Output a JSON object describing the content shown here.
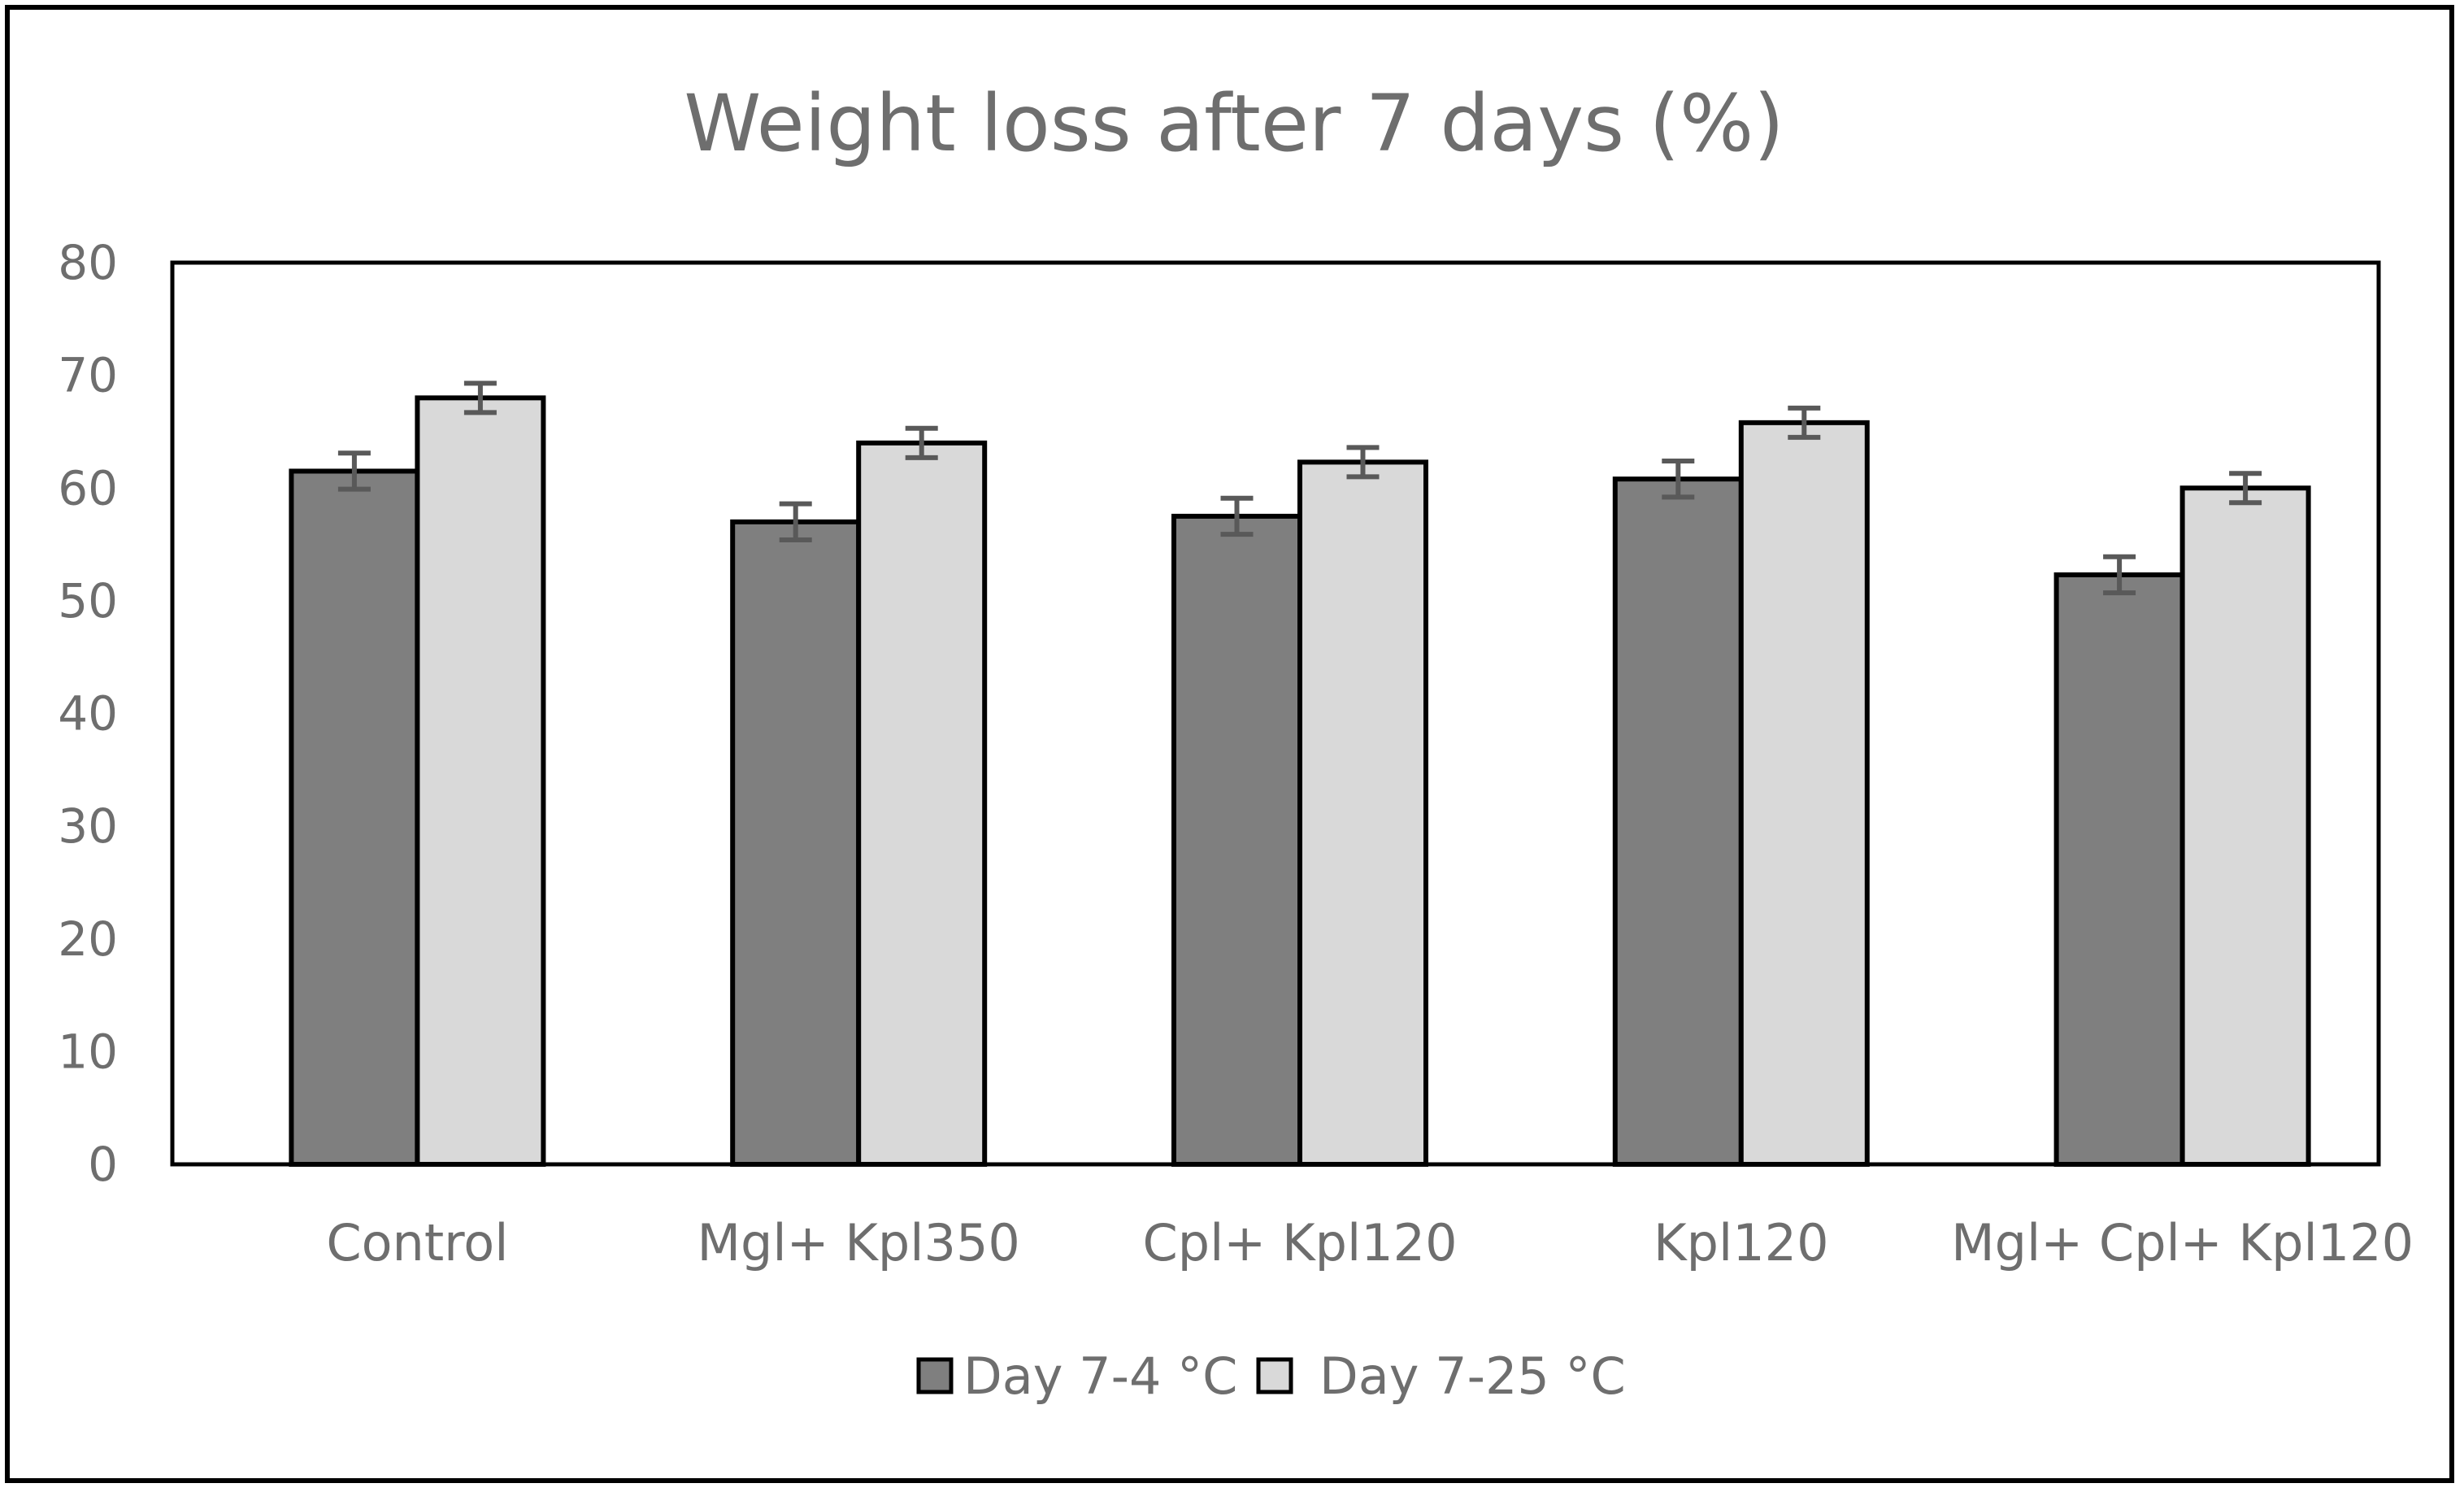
{
  "chart_data": {
    "type": "bar",
    "title": "Weight loss after 7 days (%)",
    "xlabel": "",
    "ylabel": "",
    "ylim": [
      0,
      80
    ],
    "yticks": [
      0,
      10,
      20,
      30,
      40,
      50,
      60,
      70,
      80
    ],
    "grid": false,
    "legend_position": "bottom",
    "categories": [
      "Control",
      "Mgl+ Kpl350",
      "Cpl+ Kpl120",
      "Kpl120",
      "Mgl+ Cpl+ Kpl120"
    ],
    "series": [
      {
        "name": "Day 7-4 °C",
        "color": "#7f7f7f",
        "values": [
          61.5,
          57.0,
          57.5,
          60.8,
          52.3
        ],
        "errors": [
          1.6,
          1.6,
          1.6,
          1.6,
          1.6
        ]
      },
      {
        "name": "Day 7-25 °C",
        "color": "#d9d9d9",
        "values": [
          68.0,
          64.0,
          62.3,
          65.8,
          60.0
        ],
        "errors": [
          1.3,
          1.3,
          1.3,
          1.3,
          1.3
        ]
      }
    ],
    "colors": {
      "axis": "#000000",
      "text": "#6e6e6e",
      "error_bar": "#595959",
      "border": "#000000"
    }
  }
}
